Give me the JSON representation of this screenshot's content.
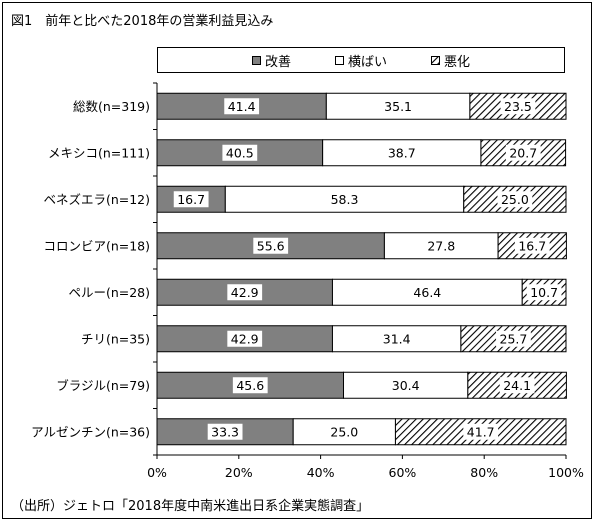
{
  "title": "図1　前年と比べた2018年の営業利益見込み",
  "source": "（出所）ジェトロ「2018年度中南米進出日系企業実態調査」",
  "chart_data": {
    "type": "bar",
    "orientation": "horizontal",
    "stacked": "100%",
    "title": "図1　前年と比べた2018年の営業利益見込み",
    "categories": [
      "総数(n=319)",
      "メキシコ(n=111)",
      "ベネズエラ(n=12)",
      "コロンビア(n=18)",
      "ペルー(n=28)",
      "チリ(n=35)",
      "ブラジル(n=79)",
      "アルゼンチン(n=36)"
    ],
    "series": [
      {
        "name": "改善",
        "color": "#808080",
        "pattern": "solid",
        "values": [
          41.4,
          40.5,
          16.7,
          55.6,
          42.9,
          42.9,
          45.6,
          33.3
        ]
      },
      {
        "name": "横ばい",
        "color": "#ffffff",
        "pattern": "blank",
        "values": [
          35.1,
          38.7,
          58.3,
          27.8,
          46.4,
          31.4,
          30.4,
          25.0
        ]
      },
      {
        "name": "悪化",
        "color": "#000000",
        "pattern": "diagonal-hatch",
        "values": [
          23.5,
          20.7,
          25.0,
          16.7,
          10.7,
          25.7,
          24.1,
          41.7
        ]
      }
    ],
    "xticks": [
      "0%",
      "20%",
      "40%",
      "60%",
      "80%",
      "100%"
    ],
    "xlim": [
      0,
      100
    ],
    "legend_position": "top",
    "grid": false
  }
}
